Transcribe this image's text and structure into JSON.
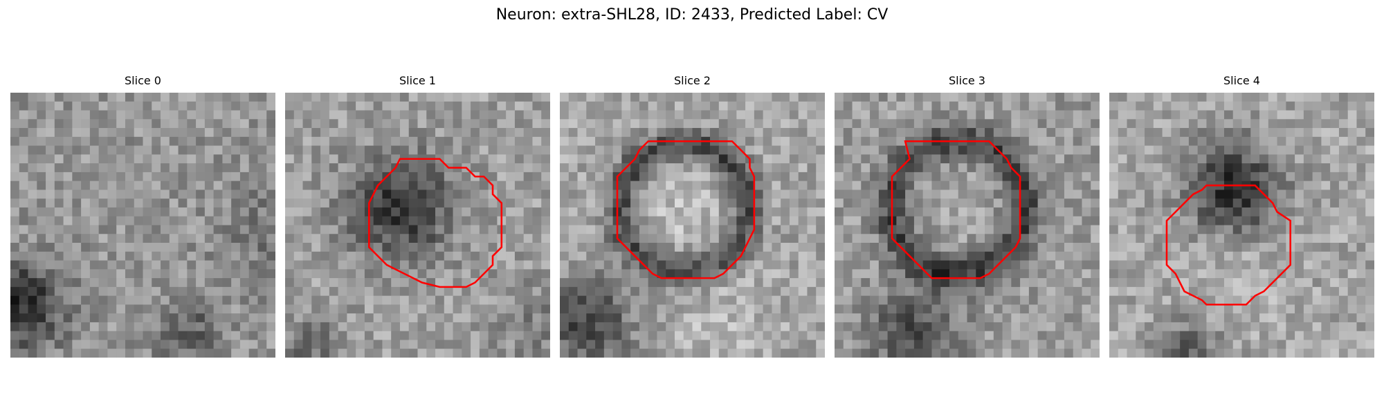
{
  "figure": {
    "title": "Neuron: extra-SHL28, ID: 2433, Predicted Label: CV"
  },
  "colors": {
    "contour": "#ff0000",
    "background": "#ffffff"
  },
  "slices": [
    {
      "title": "Slice 0",
      "has_contour": false
    },
    {
      "title": "Slice 1",
      "has_contour": true
    },
    {
      "title": "Slice 2",
      "has_contour": true
    },
    {
      "title": "Slice 3",
      "has_contour": true
    },
    {
      "title": "Slice 4",
      "has_contour": true
    }
  ]
}
